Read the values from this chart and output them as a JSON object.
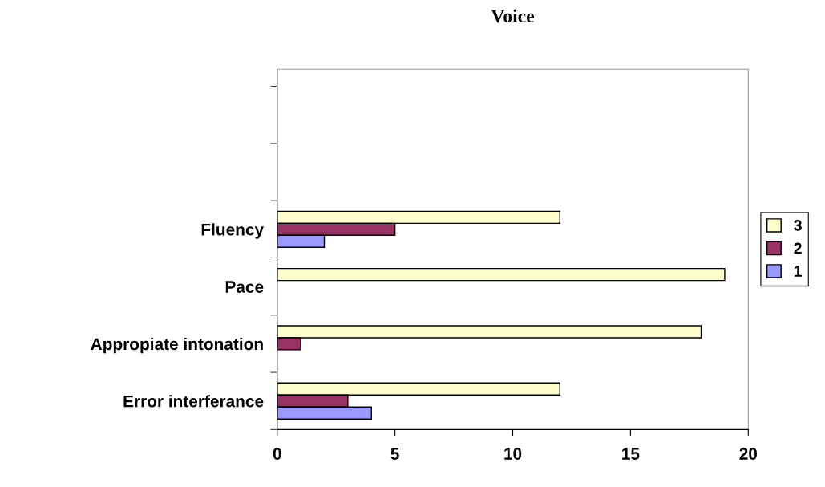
{
  "chart_data": {
    "type": "bar",
    "orientation": "horizontal",
    "title": "Voice",
    "categories": [
      null,
      null,
      "Fluency",
      "Pace",
      "Appropiate intonation",
      "Error interferance"
    ],
    "series": [
      {
        "name": "3",
        "color": "#ffffcc",
        "values": [
          null,
          null,
          12,
          19,
          18,
          12
        ]
      },
      {
        "name": "2",
        "color": "#993366",
        "values": [
          null,
          null,
          5,
          null,
          1,
          3
        ]
      },
      {
        "name": "1",
        "color": "#9999ff",
        "values": [
          null,
          null,
          2,
          null,
          null,
          4
        ]
      }
    ],
    "xlim": [
      0,
      20
    ],
    "xticks": [
      0,
      5,
      10,
      15,
      20
    ],
    "grid": false,
    "legend": "right"
  }
}
